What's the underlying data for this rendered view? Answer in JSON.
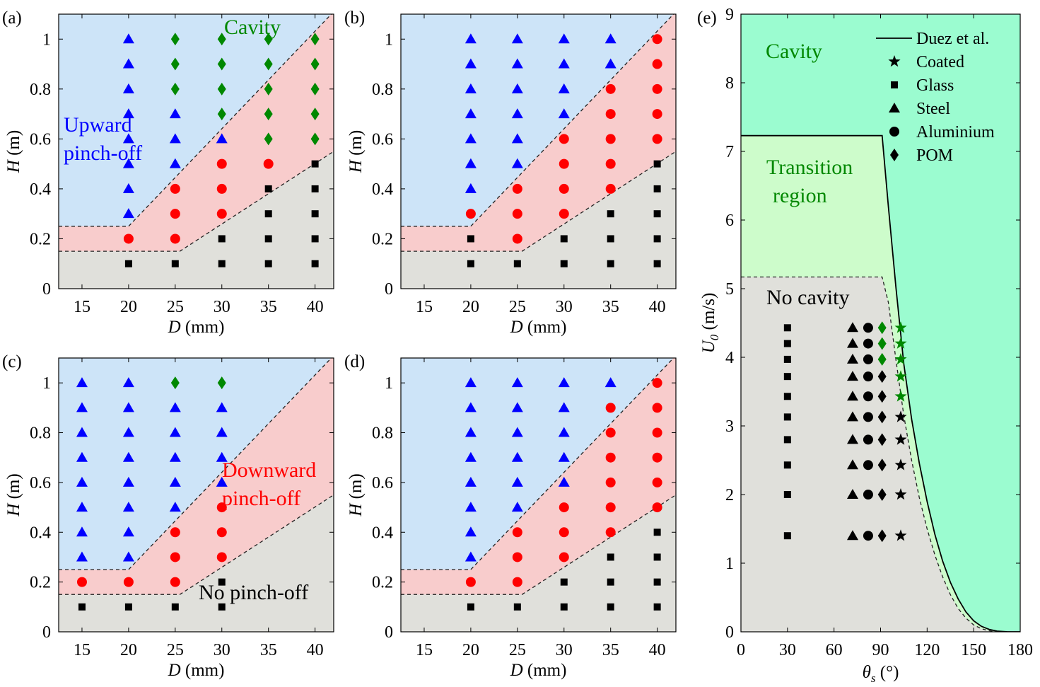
{
  "colors": {
    "upward": "#cde4f8",
    "downward": "#f8cccc",
    "nopinch": "#e0e0db",
    "cavity": "#9bfcd0",
    "transition": "#cdfccb",
    "nocavity": "#e0e0db",
    "blue": "#0000ff",
    "red": "#ff0000",
    "green": "#008800",
    "black": "#000000"
  },
  "chart_data": [
    {
      "id": "a",
      "type": "scatter",
      "panel_label": "(a)",
      "xlabel_italic": "D",
      "xlabel_unit": " (mm)",
      "ylabel_italic": "H",
      "ylabel_unit": " (m)",
      "xlim": [
        12.5,
        42
      ],
      "ylim": [
        0,
        1.1
      ],
      "xticks": [
        "15",
        "20",
        "25",
        "30",
        "35",
        "40"
      ],
      "yticks": [
        "0",
        "0.2",
        "0.4",
        "0.6",
        "0.8",
        "1"
      ],
      "boundaries": {
        "upper": [
          [
            12.5,
            0.25
          ],
          [
            20,
            0.25
          ],
          [
            42,
            1.11
          ]
        ],
        "lower": [
          [
            12.5,
            0.15
          ],
          [
            25.5,
            0.15
          ],
          [
            42,
            0.55
          ]
        ]
      },
      "region_labels": [
        {
          "text": "Cavity",
          "color": "green"
        },
        {
          "text": "Upward",
          "color": "blue"
        },
        {
          "text": "pinch-off",
          "color": "blue"
        }
      ],
      "points": [
        {
          "D": 20,
          "H": [
            0.3,
            0.4,
            0.5,
            0.6,
            0.7,
            0.8,
            0.9,
            1.0
          ],
          "m": "triangle",
          "c": "blue"
        },
        {
          "D": 20,
          "H": [
            0.2
          ],
          "m": "circle",
          "c": "red"
        },
        {
          "D": 20,
          "H": [
            0.1
          ],
          "m": "square",
          "c": "black"
        },
        {
          "D": 25,
          "H": [
            0.5,
            0.6,
            0.7
          ],
          "m": "triangle",
          "c": "blue"
        },
        {
          "D": 25,
          "H": [
            0.8,
            0.9,
            1.0
          ],
          "m": "diamond",
          "c": "green"
        },
        {
          "D": 25,
          "H": [
            0.2,
            0.3,
            0.4
          ],
          "m": "circle",
          "c": "red"
        },
        {
          "D": 25,
          "H": [
            0.1
          ],
          "m": "square",
          "c": "black"
        },
        {
          "D": 30,
          "H": [
            0.6
          ],
          "m": "triangle",
          "c": "blue"
        },
        {
          "D": 30,
          "H": [
            0.7,
            0.8,
            0.9,
            1.0
          ],
          "m": "diamond",
          "c": "green"
        },
        {
          "D": 30,
          "H": [
            0.3,
            0.4,
            0.5
          ],
          "m": "circle",
          "c": "red"
        },
        {
          "D": 30,
          "H": [
            0.1,
            0.2
          ],
          "m": "square",
          "c": "black"
        },
        {
          "D": 35,
          "H": [
            0.6,
            0.7,
            0.8,
            0.9,
            1.0
          ],
          "m": "diamond",
          "c": "green"
        },
        {
          "D": 35,
          "H": [
            0.5
          ],
          "m": "circle",
          "c": "red"
        },
        {
          "D": 35,
          "H": [
            0.1,
            0.2,
            0.3,
            0.4
          ],
          "m": "square",
          "c": "black"
        },
        {
          "D": 40,
          "H": [
            0.6,
            0.7,
            0.8,
            0.9,
            1.0
          ],
          "m": "diamond",
          "c": "green"
        },
        {
          "D": 40,
          "H": [
            0.1,
            0.2,
            0.3,
            0.4,
            0.5
          ],
          "m": "square",
          "c": "black"
        }
      ]
    },
    {
      "id": "b",
      "type": "scatter",
      "panel_label": "(b)",
      "xlabel_italic": "D",
      "xlabel_unit": " (mm)",
      "ylabel_italic": "H",
      "ylabel_unit": " (m)",
      "xlim": [
        12.5,
        42
      ],
      "ylim": [
        0,
        1.1
      ],
      "xticks": [
        "15",
        "20",
        "25",
        "30",
        "35",
        "40"
      ],
      "yticks": [
        "0",
        "0.2",
        "0.4",
        "0.6",
        "0.8",
        "1"
      ],
      "boundaries": {
        "upper": [
          [
            12.5,
            0.25
          ],
          [
            20,
            0.25
          ],
          [
            42,
            1.11
          ]
        ],
        "lower": [
          [
            12.5,
            0.15
          ],
          [
            25.5,
            0.15
          ],
          [
            42,
            0.55
          ]
        ]
      },
      "region_labels": [],
      "points": [
        {
          "D": 20,
          "H": [
            0.4,
            0.5,
            0.6,
            0.7,
            0.8,
            0.9,
            1.0
          ],
          "m": "triangle",
          "c": "blue"
        },
        {
          "D": 20,
          "H": [
            0.3
          ],
          "m": "circle",
          "c": "red"
        },
        {
          "D": 20,
          "H": [
            0.1,
            0.2
          ],
          "m": "square",
          "c": "black"
        },
        {
          "D": 25,
          "H": [
            0.5,
            0.6,
            0.7,
            0.8,
            0.9,
            1.0
          ],
          "m": "triangle",
          "c": "blue"
        },
        {
          "D": 25,
          "H": [
            0.2,
            0.3,
            0.4
          ],
          "m": "circle",
          "c": "red"
        },
        {
          "D": 25,
          "H": [
            0.1
          ],
          "m": "square",
          "c": "black"
        },
        {
          "D": 30,
          "H": [
            0.7,
            0.8,
            0.9,
            1.0
          ],
          "m": "triangle",
          "c": "blue"
        },
        {
          "D": 30,
          "H": [
            0.3,
            0.4,
            0.5,
            0.6
          ],
          "m": "circle",
          "c": "red"
        },
        {
          "D": 30,
          "H": [
            0.1,
            0.2
          ],
          "m": "square",
          "c": "black"
        },
        {
          "D": 35,
          "H": [
            0.9,
            1.0
          ],
          "m": "triangle",
          "c": "blue"
        },
        {
          "D": 35,
          "H": [
            0.4,
            0.5,
            0.6,
            0.7,
            0.8
          ],
          "m": "circle",
          "c": "red"
        },
        {
          "D": 35,
          "H": [
            0.1,
            0.2,
            0.3
          ],
          "m": "square",
          "c": "black"
        },
        {
          "D": 40,
          "H": [
            0.6,
            0.7,
            0.8,
            0.9,
            1.0
          ],
          "m": "circle",
          "c": "red"
        },
        {
          "D": 40,
          "H": [
            0.1,
            0.2,
            0.3,
            0.4,
            0.5
          ],
          "m": "square",
          "c": "black"
        }
      ]
    },
    {
      "id": "c",
      "type": "scatter",
      "panel_label": "(c)",
      "xlabel_italic": "D",
      "xlabel_unit": " (mm)",
      "ylabel_italic": "H",
      "ylabel_unit": " (m)",
      "xlim": [
        12.5,
        42
      ],
      "ylim": [
        0,
        1.1
      ],
      "xticks": [
        "15",
        "20",
        "25",
        "30",
        "35",
        "40"
      ],
      "yticks": [
        "0",
        "0.2",
        "0.4",
        "0.6",
        "0.8",
        "1"
      ],
      "boundaries": {
        "upper": [
          [
            12.5,
            0.25
          ],
          [
            20,
            0.25
          ],
          [
            42,
            1.11
          ]
        ],
        "lower": [
          [
            12.5,
            0.15
          ],
          [
            25.5,
            0.15
          ],
          [
            42,
            0.55
          ]
        ]
      },
      "region_labels": [
        {
          "text": "Downward",
          "color": "red"
        },
        {
          "text": "pinch-off",
          "color": "red"
        },
        {
          "text": "No pinch-off",
          "color": "black"
        }
      ],
      "points": [
        {
          "D": 15,
          "H": [
            0.3,
            0.4,
            0.5,
            0.6,
            0.7,
            0.8,
            0.9,
            1.0
          ],
          "m": "triangle",
          "c": "blue"
        },
        {
          "D": 15,
          "H": [
            0.2
          ],
          "m": "circle",
          "c": "red"
        },
        {
          "D": 15,
          "H": [
            0.1
          ],
          "m": "square",
          "c": "black"
        },
        {
          "D": 20,
          "H": [
            0.3,
            0.4,
            0.5,
            0.6,
            0.7,
            0.8,
            0.9,
            1.0
          ],
          "m": "triangle",
          "c": "blue"
        },
        {
          "D": 20,
          "H": [
            0.2
          ],
          "m": "circle",
          "c": "red"
        },
        {
          "D": 20,
          "H": [
            0.1
          ],
          "m": "square",
          "c": "black"
        },
        {
          "D": 25,
          "H": [
            0.5,
            0.6,
            0.7,
            0.8,
            0.9
          ],
          "m": "triangle",
          "c": "blue"
        },
        {
          "D": 25,
          "H": [
            1.0
          ],
          "m": "diamond",
          "c": "green"
        },
        {
          "D": 25,
          "H": [
            0.2,
            0.3,
            0.4
          ],
          "m": "circle",
          "c": "red"
        },
        {
          "D": 25,
          "H": [
            0.1
          ],
          "m": "square",
          "c": "black"
        },
        {
          "D": 30,
          "H": [
            0.6,
            0.7,
            0.8,
            0.9
          ],
          "m": "triangle",
          "c": "blue"
        },
        {
          "D": 30,
          "H": [
            1.0
          ],
          "m": "diamond",
          "c": "green"
        },
        {
          "D": 30,
          "H": [
            0.3,
            0.4,
            0.5
          ],
          "m": "circle",
          "c": "red"
        },
        {
          "D": 30,
          "H": [
            0.1,
            0.2
          ],
          "m": "square",
          "c": "black"
        }
      ]
    },
    {
      "id": "d",
      "type": "scatter",
      "panel_label": "(d)",
      "xlabel_italic": "D",
      "xlabel_unit": " (mm)",
      "ylabel_italic": "H",
      "ylabel_unit": " (m)",
      "xlim": [
        12.5,
        42
      ],
      "ylim": [
        0,
        1.1
      ],
      "xticks": [
        "15",
        "20",
        "25",
        "30",
        "35",
        "40"
      ],
      "yticks": [
        "0",
        "0.2",
        "0.4",
        "0.6",
        "0.8",
        "1"
      ],
      "boundaries": {
        "upper": [
          [
            12.5,
            0.25
          ],
          [
            20,
            0.25
          ],
          [
            42,
            1.11
          ]
        ],
        "lower": [
          [
            12.5,
            0.15
          ],
          [
            25.5,
            0.15
          ],
          [
            42,
            0.55
          ]
        ]
      },
      "region_labels": [],
      "points": [
        {
          "D": 20,
          "H": [
            0.3,
            0.4,
            0.5,
            0.6,
            0.7,
            0.8,
            0.9,
            1.0
          ],
          "m": "triangle",
          "c": "blue"
        },
        {
          "D": 20,
          "H": [
            0.2
          ],
          "m": "circle",
          "c": "red"
        },
        {
          "D": 20,
          "H": [
            0.1
          ],
          "m": "square",
          "c": "black"
        },
        {
          "D": 25,
          "H": [
            0.5,
            0.6,
            0.7,
            0.8,
            0.9,
            1.0
          ],
          "m": "triangle",
          "c": "blue"
        },
        {
          "D": 25,
          "H": [
            0.2,
            0.3,
            0.4
          ],
          "m": "circle",
          "c": "red"
        },
        {
          "D": 25,
          "H": [
            0.1
          ],
          "m": "square",
          "c": "black"
        },
        {
          "D": 30,
          "H": [
            0.6,
            0.7,
            0.8,
            0.9,
            1.0
          ],
          "m": "triangle",
          "c": "blue"
        },
        {
          "D": 30,
          "H": [
            0.3,
            0.4,
            0.5
          ],
          "m": "circle",
          "c": "red"
        },
        {
          "D": 30,
          "H": [
            0.1,
            0.2
          ],
          "m": "square",
          "c": "black"
        },
        {
          "D": 35,
          "H": [
            1.0
          ],
          "m": "triangle",
          "c": "blue"
        },
        {
          "D": 35,
          "H": [
            0.4,
            0.5,
            0.6,
            0.7,
            0.8,
            0.9
          ],
          "m": "circle",
          "c": "red"
        },
        {
          "D": 35,
          "H": [
            0.1,
            0.2,
            0.3
          ],
          "m": "square",
          "c": "black"
        },
        {
          "D": 40,
          "H": [
            0.5,
            0.6,
            0.7,
            0.8,
            0.9,
            1.0
          ],
          "m": "circle",
          "c": "red"
        },
        {
          "D": 40,
          "H": [
            0.1,
            0.2,
            0.3,
            0.4
          ],
          "m": "square",
          "c": "black"
        }
      ]
    },
    {
      "id": "e",
      "type": "scatter",
      "panel_label": "(e)",
      "xlabel_italic": "θs",
      "xlabel_unit": " (°)",
      "ylabel_italic": "U0",
      "ylabel_unit": " (m/s)",
      "xlim": [
        0,
        180
      ],
      "ylim": [
        0,
        9
      ],
      "xticks": [
        "0",
        "30",
        "60",
        "90",
        "120",
        "150",
        "180"
      ],
      "yticks": [
        "0",
        "1",
        "2",
        "3",
        "4",
        "5",
        "6",
        "7",
        "8",
        "9"
      ],
      "duez_plateau": 7.23,
      "nocav_plateau": 5.17,
      "region_labels": [
        {
          "text": "Cavity",
          "color": "green"
        },
        {
          "text": "Transition",
          "color": "green"
        },
        {
          "text": "region",
          "color": "green"
        },
        {
          "text": "No cavity",
          "color": "black"
        }
      ],
      "legend": [
        {
          "label": "Duez et al.",
          "m": "line"
        },
        {
          "label": "Coated",
          "m": "star"
        },
        {
          "label": "Glass",
          "m": "square"
        },
        {
          "label": "Steel",
          "m": "triangle"
        },
        {
          "label": "Aluminium",
          "m": "circle"
        },
        {
          "label": "POM",
          "m": "diamond"
        }
      ],
      "points": [
        {
          "theta": 30,
          "U": [
            1.4,
            2.0,
            2.43,
            2.8,
            3.13,
            3.43,
            3.72,
            3.97,
            4.2,
            4.43
          ],
          "m": "square",
          "c": "black"
        },
        {
          "theta": 72,
          "U": [
            1.4,
            2.0,
            2.43,
            2.8,
            3.13,
            3.43,
            3.72,
            3.97,
            4.2,
            4.43
          ],
          "m": "triangle",
          "c": "black"
        },
        {
          "theta": 82,
          "U": [
            1.4,
            2.0,
            2.43,
            2.8,
            3.13,
            3.43,
            3.72,
            3.97,
            4.2,
            4.43
          ],
          "m": "circle",
          "c": "black"
        },
        {
          "theta": 91,
          "U": [
            1.4,
            2.0,
            2.43,
            2.8,
            3.13,
            3.43,
            3.72
          ],
          "m": "diamond",
          "c": "black"
        },
        {
          "theta": 91,
          "U": [
            3.97,
            4.2,
            4.43
          ],
          "m": "diamond",
          "c": "green"
        },
        {
          "theta": 103,
          "U": [
            1.4,
            2.0,
            2.43,
            2.8,
            3.13
          ],
          "m": "star",
          "c": "black"
        },
        {
          "theta": 103,
          "U": [
            3.43,
            3.72,
            3.97,
            4.2,
            4.43
          ],
          "m": "star",
          "c": "green"
        }
      ]
    }
  ]
}
